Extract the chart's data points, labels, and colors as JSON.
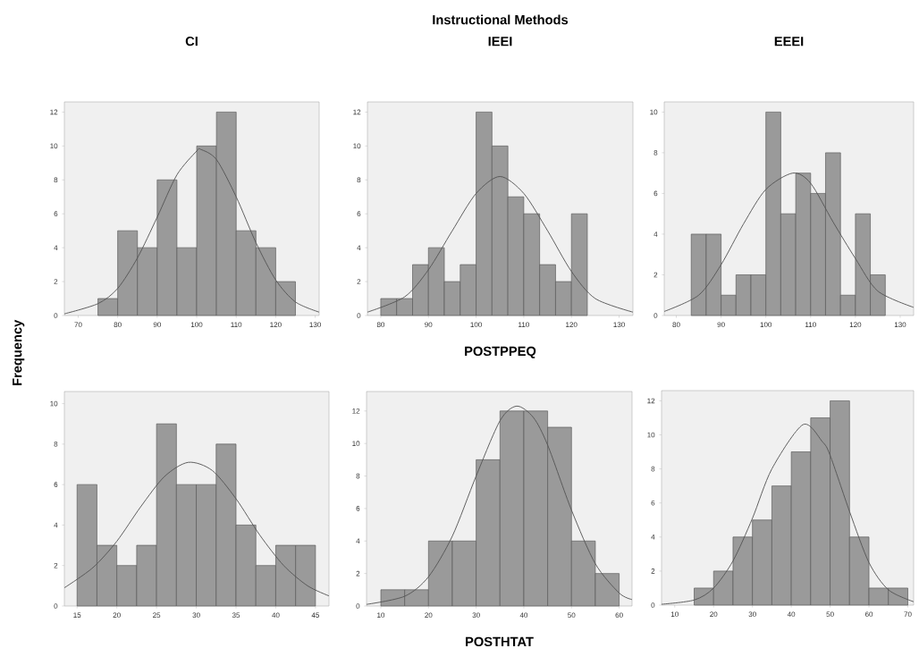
{
  "chart_data": [
    {
      "type": "histogram",
      "title": "CI",
      "ylabel": "Frequency",
      "xlim": [
        66.5,
        131
      ],
      "ylim": [
        0,
        12.6
      ],
      "xticks": [
        70,
        80,
        90,
        100,
        110,
        120,
        130
      ],
      "yticks": [
        0,
        2,
        4,
        6,
        8,
        10,
        12
      ],
      "series": [
        {
          "type": "histogram",
          "color": "#9a9a9a",
          "bins": [
            75,
            80,
            85,
            90,
            95,
            100,
            105,
            110,
            115,
            120,
            125
          ],
          "values": [
            1,
            5,
            4,
            8,
            4,
            10,
            12,
            5,
            4,
            2
          ]
        },
        {
          "type": "line",
          "color": "#555555",
          "x": [
            66.5,
            75,
            80,
            85,
            90,
            95,
            100,
            101,
            105,
            110,
            115,
            120,
            125,
            131
          ],
          "values": [
            0.1,
            0.7,
            1.6,
            3.4,
            5.8,
            8.3,
            9.7,
            9.8,
            9.2,
            7.0,
            4.3,
            2.1,
            0.8,
            0.2
          ]
        }
      ]
    },
    {
      "type": "histogram",
      "title": "IEEI",
      "annotations": [
        "Instructional Methods"
      ],
      "xlabel": "POSTPPEQ",
      "xlim": [
        77.2,
        132.9
      ],
      "ylim": [
        0,
        12.6
      ],
      "xticks": [
        80,
        90,
        100,
        110,
        120,
        130
      ],
      "yticks": [
        0,
        2,
        4,
        6,
        8,
        10,
        12
      ],
      "series": [
        {
          "type": "histogram",
          "color": "#9a9a9a",
          "bins": [
            80,
            83.33,
            86.67,
            90,
            93.33,
            96.67,
            100,
            103.33,
            106.67,
            110,
            113.33,
            116.67,
            120,
            123.33
          ],
          "values": [
            1,
            1,
            3,
            4,
            2,
            3,
            12,
            10,
            7,
            6,
            3,
            2,
            6
          ]
        },
        {
          "type": "line",
          "color": "#555555",
          "x": [
            77.2,
            85,
            90,
            95,
            100,
            105,
            110,
            115,
            120,
            125,
            132.9
          ],
          "values": [
            0.2,
            1.1,
            2.7,
            5.0,
            7.2,
            8.2,
            7.2,
            5.0,
            2.6,
            1.0,
            0.2
          ]
        }
      ]
    },
    {
      "type": "histogram",
      "title": "EEEI",
      "xlim": [
        77.3,
        133
      ],
      "ylim": [
        0,
        10.5
      ],
      "xticks": [
        80,
        90,
        100,
        110,
        120,
        130
      ],
      "yticks": [
        0,
        2,
        4,
        6,
        8,
        10
      ],
      "series": [
        {
          "type": "histogram",
          "color": "#9a9a9a",
          "bins": [
            83.33,
            86.67,
            90,
            93.33,
            96.67,
            100,
            103.33,
            106.67,
            110,
            113.33,
            116.67,
            120,
            123.33,
            126.67
          ],
          "values": [
            4,
            4,
            1,
            2,
            2,
            10,
            5,
            7,
            6,
            8,
            1,
            5,
            2
          ]
        },
        {
          "type": "line",
          "color": "#555555",
          "x": [
            77.3,
            85,
            90,
            95,
            100,
            106,
            110,
            115,
            120,
            125,
            133
          ],
          "values": [
            0.2,
            1.0,
            2.5,
            4.5,
            6.2,
            7.0,
            6.5,
            4.6,
            2.8,
            1.2,
            0.4
          ]
        }
      ]
    },
    {
      "type": "histogram",
      "xlim": [
        13.4,
        46.7
      ],
      "ylim": [
        0,
        10.6
      ],
      "xticks": [
        15,
        20,
        25,
        30,
        35,
        40,
        45
      ],
      "yticks": [
        0,
        2,
        4,
        6,
        8,
        10
      ],
      "series": [
        {
          "type": "histogram",
          "color": "#9a9a9a",
          "bins": [
            15,
            17.5,
            20,
            22.5,
            25,
            27.5,
            30,
            32.5,
            35,
            37.5,
            40,
            42.5,
            45
          ],
          "values": [
            6,
            3,
            2,
            3,
            9,
            6,
            6,
            8,
            4,
            2,
            3,
            3
          ]
        },
        {
          "type": "line",
          "color": "#555555",
          "x": [
            13.4,
            17,
            20,
            23,
            26,
            29,
            32,
            35,
            38,
            41,
            44,
            46.7
          ],
          "values": [
            0.9,
            1.9,
            3.2,
            4.9,
            6.4,
            7.1,
            6.7,
            5.3,
            3.5,
            2.0,
            1.0,
            0.5
          ]
        }
      ]
    },
    {
      "type": "histogram",
      "xlabel": "POSTHTAT",
      "xlim": [
        7,
        62.7
      ],
      "ylim": [
        0,
        13.2
      ],
      "xticks": [
        10,
        20,
        30,
        40,
        50,
        60
      ],
      "yticks": [
        0,
        2,
        4,
        6,
        8,
        10,
        12
      ],
      "series": [
        {
          "type": "histogram",
          "color": "#9a9a9a",
          "bins": [
            10,
            15,
            20,
            25,
            30,
            35,
            40,
            45,
            50,
            55,
            60
          ],
          "values": [
            1,
            1,
            4,
            4,
            9,
            12,
            12,
            11,
            4,
            2
          ]
        },
        {
          "type": "line",
          "color": "#555555",
          "x": [
            7,
            15,
            20,
            25,
            30,
            35,
            38.5,
            42,
            45,
            50,
            55,
            60,
            62.7
          ],
          "values": [
            0.1,
            0.6,
            1.8,
            4.3,
            8.0,
            11.4,
            12.3,
            11.6,
            9.9,
            5.9,
            2.6,
            0.8,
            0.4
          ]
        }
      ]
    },
    {
      "type": "histogram",
      "xlim": [
        6.6,
        71.5
      ],
      "ylim": [
        0,
        12.6
      ],
      "xticks": [
        10,
        20,
        30,
        40,
        50,
        60,
        70
      ],
      "yticks": [
        0,
        2,
        4,
        6,
        8,
        10,
        12
      ],
      "series": [
        {
          "type": "histogram",
          "color": "#9a9a9a",
          "bins": [
            15,
            20,
            25,
            30,
            35,
            40,
            45,
            50,
            55,
            60,
            65,
            70
          ],
          "values": [
            1,
            2,
            4,
            5,
            7,
            9,
            11,
            12,
            4,
            1,
            1
          ]
        },
        {
          "type": "line",
          "color": "#555555",
          "x": [
            6.6,
            15,
            20,
            25,
            30,
            35,
            43,
            48,
            50,
            55,
            60,
            65,
            71.5
          ],
          "values": [
            0.05,
            0.3,
            1.0,
            2.6,
            5.1,
            8.0,
            10.6,
            9.6,
            8.8,
            5.5,
            2.5,
            0.9,
            0.2
          ]
        }
      ]
    }
  ]
}
